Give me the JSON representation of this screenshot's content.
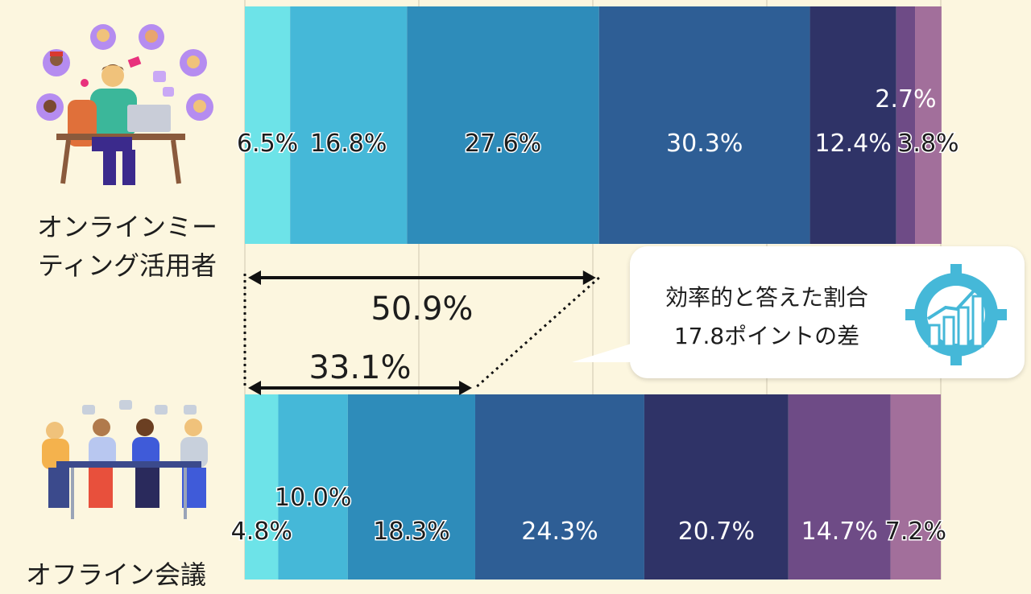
{
  "chart_data": {
    "type": "bar",
    "orientation": "horizontal-stacked-100",
    "categories": [
      "オンラインミーティング活用者",
      "オフライン会議"
    ],
    "category_labels": [
      "オンラインミー\nティング活用者",
      "オフライン会議"
    ],
    "series": [
      {
        "color": "#6de3e8",
        "values": [
          6.5,
          4.8
        ]
      },
      {
        "color": "#45b8d8",
        "values": [
          16.8,
          10.0
        ]
      },
      {
        "color": "#2e8cba",
        "values": [
          27.6,
          18.3
        ]
      },
      {
        "color": "#2e5e95",
        "values": [
          30.3,
          24.3
        ]
      },
      {
        "color": "#2f3367",
        "values": [
          12.4,
          20.7
        ]
      },
      {
        "color": "#6e4b86",
        "values": [
          2.7,
          14.7
        ]
      },
      {
        "color": "#a26f9b",
        "values": [
          3.8,
          7.2
        ]
      }
    ],
    "data_labels": [
      [
        "6.5%",
        "16.8%",
        "27.6%",
        "30.3%",
        "12.4%",
        "2.7%",
        "3.8%"
      ],
      [
        "4.8%",
        "10.0%",
        "18.3%",
        "24.3%",
        "20.7%",
        "14.7%",
        "7.2%"
      ]
    ],
    "xlim": [
      0,
      100
    ],
    "grid": true,
    "brackets": [
      {
        "label": "50.9%",
        "value": 50.9
      },
      {
        "label": "33.1%",
        "value": 33.1
      }
    ]
  },
  "callout": {
    "line1": "効率的と答えた割合",
    "line2": "17.8ポイントの差",
    "icon": "growth-chart-gear-icon"
  },
  "illustrations": {
    "online": "online-meeting-person-icon",
    "offline": "offline-meeting-group-icon"
  }
}
